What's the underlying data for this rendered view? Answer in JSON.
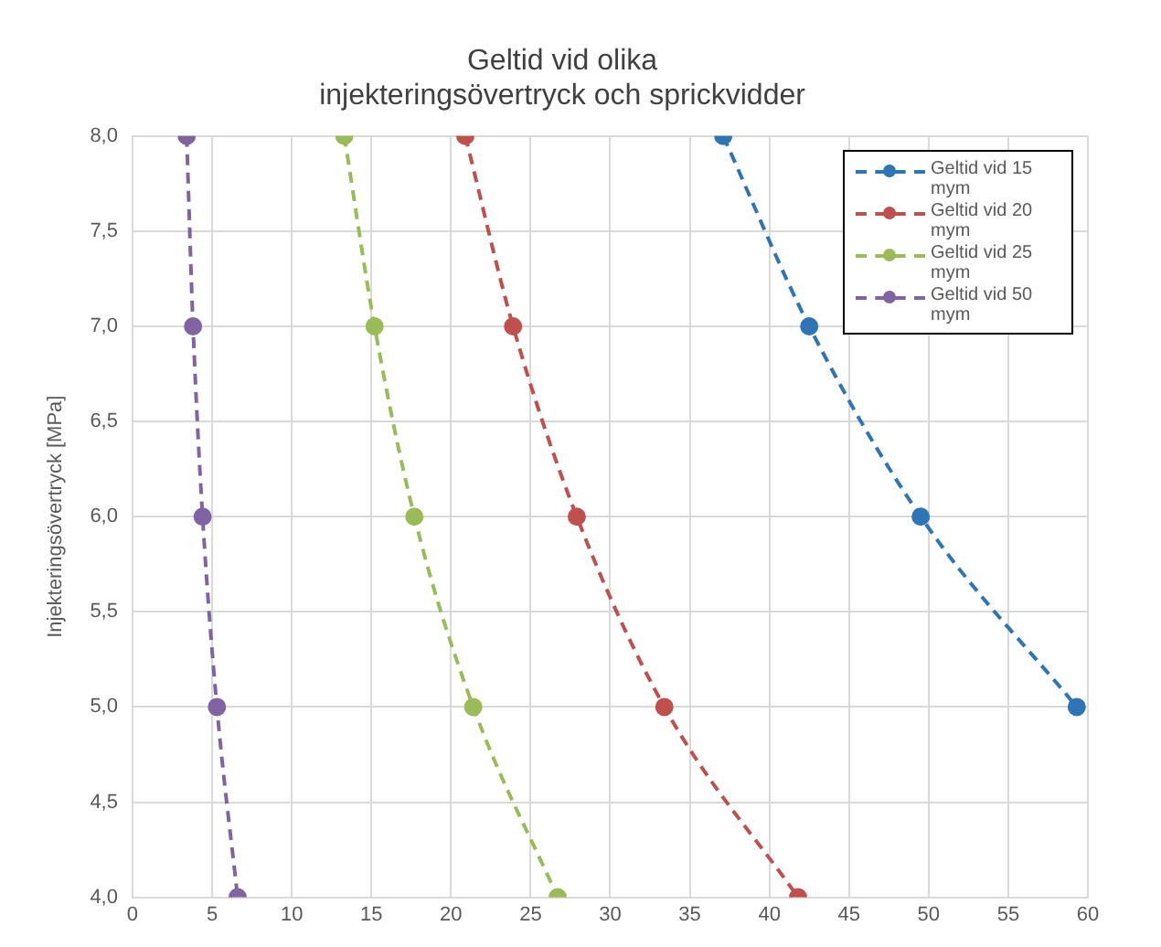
{
  "chart_data": {
    "type": "line",
    "title": "Geltid vid olika\ninjekteringsövertryck och sprickvidder",
    "ylabel": "Injekteringsövertryck [MPa]",
    "xlim": [
      0,
      60
    ],
    "xticks": [
      0,
      5,
      10,
      15,
      20,
      25,
      30,
      35,
      40,
      45,
      50,
      55,
      60
    ],
    "ylim": [
      4,
      8
    ],
    "yticks": [
      {
        "value": 4,
        "label": "4,0"
      },
      {
        "value": 4.5,
        "label": "4,5"
      },
      {
        "value": 5,
        "label": "5,0"
      },
      {
        "value": 5.5,
        "label": "5,5"
      },
      {
        "value": 6,
        "label": "6,0"
      },
      {
        "value": 6.5,
        "label": "6,5"
      },
      {
        "value": 7,
        "label": "7,0"
      },
      {
        "value": 7.5,
        "label": "7,5"
      },
      {
        "value": 8,
        "label": "8,0"
      }
    ],
    "grid": true,
    "legend": "top right",
    "marker": "circle",
    "line_style": "dashed",
    "series": [
      {
        "name": "Geltid vid 15 mym",
        "color": "#2e75b6",
        "x": [
          37.1,
          42.5,
          49.5,
          59.3
        ],
        "values": [
          8,
          7,
          6,
          5
        ]
      },
      {
        "name": "Geltid vid 20 mym",
        "color": "#c0504d",
        "x": [
          20.9,
          23.9,
          27.9,
          33.4,
          41.8
        ],
        "values": [
          8,
          7,
          6,
          5,
          4
        ]
      },
      {
        "name": "Geltid vid 25 mym",
        "color": "#9bbb59",
        "x": [
          13.3,
          15.2,
          17.7,
          21.4,
          26.7
        ],
        "values": [
          8,
          7,
          6,
          5,
          4
        ]
      },
      {
        "name": "Geltid vid 50 mym",
        "color": "#8064a2",
        "x": [
          3.4,
          3.8,
          4.4,
          5.3,
          6.6
        ],
        "values": [
          8,
          7,
          6,
          5,
          4
        ]
      }
    ]
  }
}
